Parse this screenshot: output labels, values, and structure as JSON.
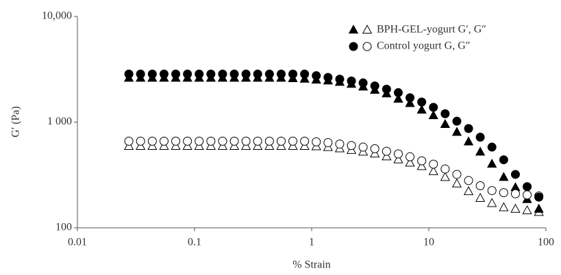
{
  "chart_data": {
    "type": "scatter",
    "x_label": "% Strain",
    "y_label": "G′ (Pa)",
    "xscale": "log",
    "yscale": "log",
    "xlim": [
      0.01,
      100
    ],
    "xticks": [
      0.01,
      0.1,
      1,
      10,
      100
    ],
    "ylim": [
      100,
      10000
    ],
    "yticks": [
      100,
      {
        "value": 1000,
        "label": "1 000"
      },
      {
        "value": 10000,
        "label": "10,000"
      }
    ],
    "legend": "top-right",
    "x": [
      0.0275,
      0.0346,
      0.0436,
      0.0549,
      0.0691,
      0.087,
      0.1095,
      0.1379,
      0.1736,
      0.2185,
      0.275,
      0.346,
      0.436,
      0.549,
      0.691,
      0.87,
      1.095,
      1.379,
      1.736,
      2.185,
      2.75,
      3.46,
      4.36,
      5.49,
      6.91,
      8.7,
      10.95,
      13.79,
      17.36,
      21.85,
      27.5,
      34.6,
      43.6,
      54.9,
      69.1,
      87.0
    ],
    "series": [
      {
        "name": "BPH-GEL-yogurt G′, G″",
        "color": "#000000",
        "marker": "triangle",
        "filled_values": [
          2600,
          2600,
          2600,
          2600,
          2600,
          2600,
          2600,
          2600,
          2600,
          2600,
          2600,
          2600,
          2600,
          2600,
          2580,
          2550,
          2500,
          2450,
          2380,
          2280,
          2150,
          2000,
          1850,
          1650,
          1500,
          1300,
          1150,
          950,
          800,
          650,
          520,
          400,
          300,
          240,
          185,
          150
        ],
        "open_values": [
          590,
          590,
          590,
          590,
          590,
          590,
          590,
          590,
          590,
          590,
          590,
          590,
          590,
          590,
          590,
          590,
          585,
          575,
          560,
          540,
          520,
          500,
          470,
          440,
          410,
          380,
          340,
          300,
          260,
          220,
          190,
          170,
          155,
          150,
          145,
          140
        ]
      },
      {
        "name": "Control yogurt G, G″",
        "color": "#000000",
        "marker": "circle",
        "filled_values": [
          2850,
          2850,
          2850,
          2850,
          2850,
          2850,
          2850,
          2850,
          2850,
          2850,
          2850,
          2850,
          2850,
          2850,
          2850,
          2850,
          2750,
          2650,
          2550,
          2450,
          2350,
          2200,
          2050,
          1900,
          1700,
          1550,
          1380,
          1200,
          1020,
          870,
          720,
          580,
          440,
          320,
          245,
          195
        ],
        "open_values": [
          660,
          660,
          660,
          660,
          660,
          660,
          660,
          660,
          660,
          660,
          660,
          660,
          660,
          660,
          660,
          660,
          650,
          640,
          620,
          600,
          580,
          560,
          530,
          500,
          470,
          430,
          400,
          360,
          320,
          280,
          250,
          225,
          215,
          210,
          205,
          200
        ]
      }
    ]
  }
}
